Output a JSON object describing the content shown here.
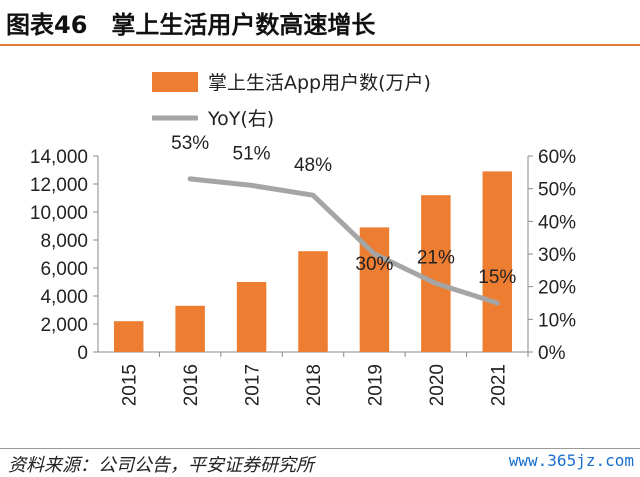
{
  "header": {
    "figure_label": "图表46",
    "title": "掌上生活用户数高速增长"
  },
  "footer": {
    "source": "资料来源：公司公告，平安证券研究所",
    "watermark": "www.365jz.com"
  },
  "chart_data": {
    "type": "bar",
    "categories": [
      "2015",
      "2016",
      "2017",
      "2018",
      "2019",
      "2020",
      "2021"
    ],
    "series": [
      {
        "name": "掌上生活App用户数(万户)",
        "type": "bar",
        "axis": "left",
        "color": "#ed7d31",
        "values": [
          2200,
          3300,
          5000,
          7200,
          8900,
          11200,
          12900
        ]
      },
      {
        "name": "YoY(右)",
        "type": "line",
        "axis": "right",
        "color": "#a5a5a5",
        "values": [
          null,
          53,
          51,
          48,
          30,
          21,
          15
        ],
        "labels": [
          "",
          "53%",
          "51%",
          "48%",
          "30%",
          "21%",
          "15%"
        ]
      }
    ],
    "y_left": {
      "min": 0,
      "max": 14000,
      "ticks": [
        0,
        2000,
        4000,
        6000,
        8000,
        10000,
        12000,
        14000
      ],
      "tick_labels": [
        "0",
        "2,000",
        "4,000",
        "6,000",
        "8,000",
        "10,000",
        "12,000",
        "14,000"
      ]
    },
    "y_right": {
      "min": 0,
      "max": 60,
      "ticks": [
        0,
        10,
        20,
        30,
        40,
        50,
        60
      ],
      "tick_labels": [
        "0%",
        "10%",
        "20%",
        "30%",
        "40%",
        "50%",
        "60%"
      ]
    },
    "legend": "top-center",
    "grid": false
  }
}
